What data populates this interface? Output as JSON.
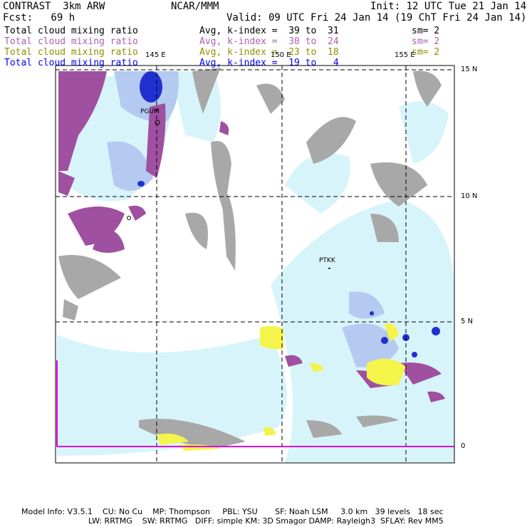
{
  "header": {
    "model": "CONTRAST  3km ARW",
    "center": "NCAR/MMM",
    "init": "Init: 12 UTC Tue 21 Jan 14",
    "fcst": "Fcst:   69 h",
    "valid": "Valid: 09 UTC Fri 24 Jan 14 (19 ChT Fri 24 Jan 14)"
  },
  "legend": [
    {
      "name": "Total cloud mixing ratio",
      "avg": "Avg, k-index =  39 to  31",
      "sm": "sm= 2",
      "color": "#000000"
    },
    {
      "name": "Total cloud mixing ratio",
      "avg": "Avg, k-index =  30 to  24",
      "sm": "sm= 2",
      "color": "#b060b0"
    },
    {
      "name": "Total cloud mixing ratio",
      "avg": "Avg, k-index =  23 to  18",
      "sm": "sm= 2",
      "color": "#909000"
    },
    {
      "name": "Total cloud mixing ratio",
      "avg": "Avg, k-index =  19 to   4",
      "sm": "",
      "color": "#0000ff"
    }
  ],
  "map": {
    "lon_labels": [
      "145 E",
      "150 E",
      "155 E"
    ],
    "lat_labels": [
      "15 N",
      "10 N",
      "5 N",
      "0"
    ],
    "stations": [
      "PGUM",
      "PTKK"
    ],
    "colors": {
      "gray": "#a8a8a8",
      "purple": "#a050a0",
      "light_blue": "#d8f4fb",
      "mid_blue": "#b0c8f0",
      "dark_blue": "#2030d0",
      "yellow": "#f4f44a",
      "magenta": "#e000e0"
    }
  },
  "footer": {
    "line1": "Model Info: V3.5.1    CU: No Cu    MP: Thompson     PBL: YSU       SF: Noah LSM     3.0 km   39 levels   18 sec",
    "line2": "LW: RRTMG    SW: RRTMG   DIFF: simple KM: 3D Smagor DAMP: Rayleigh3  SFLAY: Rev MM5"
  }
}
